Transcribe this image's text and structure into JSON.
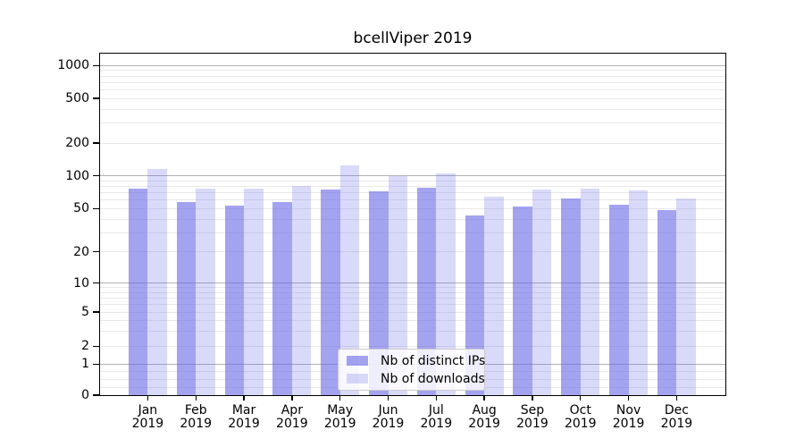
{
  "chart_data": {
    "type": "bar",
    "title": "bcellViper 2019",
    "categories": [
      "Jan 2019",
      "Feb 2019",
      "Mar 2019",
      "Apr 2019",
      "May 2019",
      "Jun 2019",
      "Jul 2019",
      "Aug 2019",
      "Sep 2019",
      "Oct 2019",
      "Nov 2019",
      "Dec 2019"
    ],
    "series": [
      {
        "name": "Nb of distinct IPs",
        "color": "rgba(102,102,230,0.6)",
        "values": [
          77,
          57,
          53,
          57,
          75,
          72,
          78,
          43,
          52,
          62,
          54,
          48
        ]
      },
      {
        "name": "Nb of downloads",
        "color": "rgba(102,102,230,0.25)",
        "values": [
          115,
          76,
          76,
          80,
          125,
          100,
          105,
          64,
          75,
          76,
          73,
          62
        ]
      }
    ],
    "xlabel": "",
    "ylabel": "",
    "yscale": "symlog",
    "y_ticks": [
      0,
      1,
      2,
      5,
      10,
      20,
      50,
      100,
      200,
      500,
      1000
    ],
    "ylim": [
      0,
      1300
    ],
    "grid": true,
    "legend_position": "lower center",
    "colors": {
      "major_gridline": "#b2b2b2",
      "minor_gridline": "#e9e9e9",
      "axis": "#000000"
    }
  }
}
